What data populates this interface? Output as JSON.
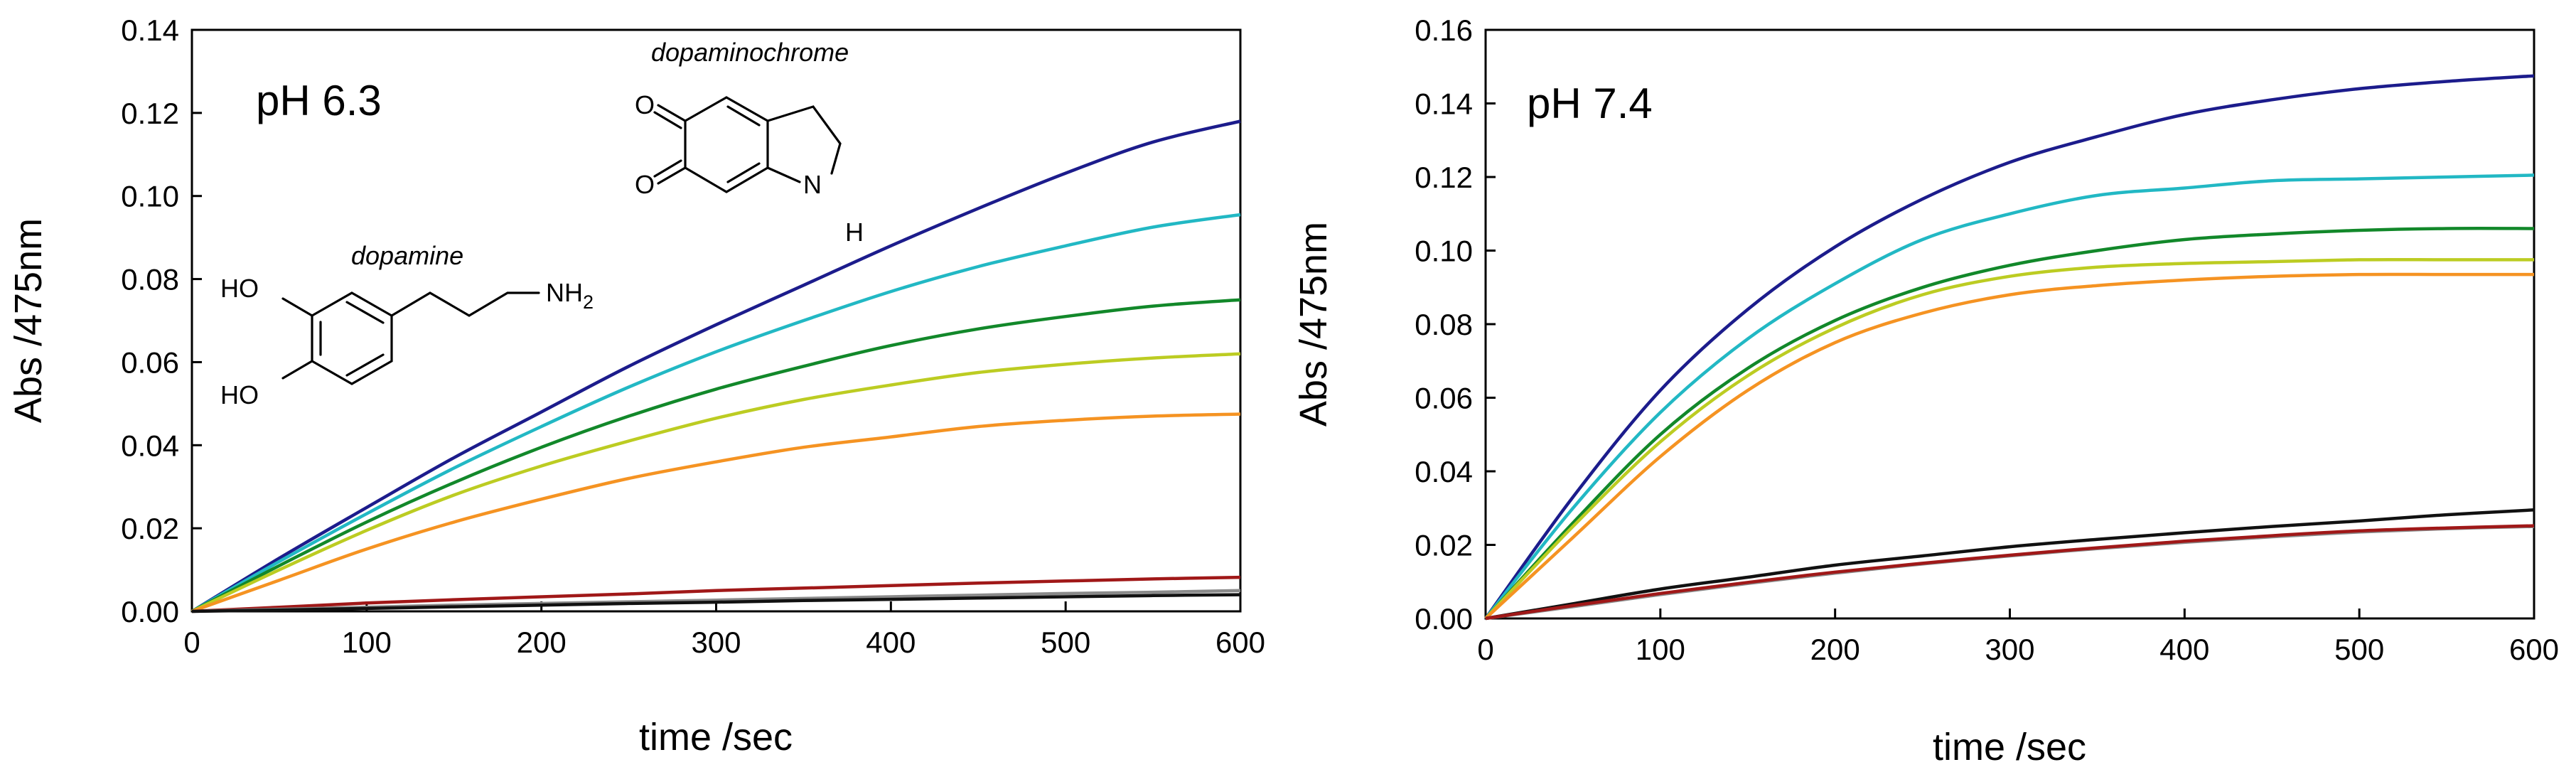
{
  "chart_data": [
    {
      "type": "line",
      "panel_label": "pH 6.3",
      "xlabel": "time /sec",
      "ylabel": "Abs /475nm",
      "xlim": [
        0,
        600
      ],
      "ylim": [
        0,
        0.14
      ],
      "xticks": [
        0,
        100,
        200,
        300,
        400,
        500,
        600
      ],
      "xtick_labels": [
        "0",
        "100",
        "200",
        "300",
        "400",
        "500",
        "600"
      ],
      "yticks": [
        0,
        0.02,
        0.04,
        0.06,
        0.08,
        0.1,
        0.12,
        0.14
      ],
      "ytick_labels": [
        "0.00",
        "0.02",
        "0.04",
        "0.06",
        "0.08",
        "0.10",
        "0.12",
        "0.14"
      ],
      "x": [
        0,
        50,
        100,
        150,
        200,
        250,
        300,
        350,
        400,
        450,
        500,
        550,
        600
      ],
      "series": [
        {
          "name": "navy",
          "color": "#1c1c8c",
          "values": [
            0,
            0.0128,
            0.025,
            0.037,
            0.048,
            0.059,
            0.069,
            0.0785,
            0.088,
            0.097,
            0.1055,
            0.113,
            0.118
          ]
        },
        {
          "name": "cyan",
          "color": "#22b8c4",
          "values": [
            0,
            0.012,
            0.0235,
            0.0345,
            0.0445,
            0.054,
            0.0625,
            0.07,
            0.077,
            0.083,
            0.088,
            0.0925,
            0.0955
          ]
        },
        {
          "name": "green",
          "color": "#12882a",
          "values": [
            0,
            0.011,
            0.0215,
            0.031,
            0.0395,
            0.047,
            0.0535,
            0.059,
            0.064,
            0.068,
            0.071,
            0.0735,
            0.075
          ]
        },
        {
          "name": "yellow-green",
          "color": "#bccc22",
          "values": [
            0,
            0.01,
            0.0195,
            0.028,
            0.035,
            0.041,
            0.0465,
            0.051,
            0.0545,
            0.0575,
            0.0595,
            0.061,
            0.062
          ]
        },
        {
          "name": "orange",
          "color": "#f59322",
          "values": [
            0,
            0.0075,
            0.015,
            0.0215,
            0.027,
            0.032,
            0.036,
            0.0395,
            0.042,
            0.0445,
            0.046,
            0.047,
            0.0475
          ]
        },
        {
          "name": "dark-red",
          "color": "#a01818",
          "values": [
            0,
            0.001,
            0.002,
            0.0028,
            0.0035,
            0.0042,
            0.005,
            0.0056,
            0.0062,
            0.0068,
            0.0073,
            0.0078,
            0.0082
          ]
        },
        {
          "name": "gray",
          "color": "#8a8a8a",
          "values": [
            0,
            0.0005,
            0.001,
            0.0015,
            0.0019,
            0.0023,
            0.0027,
            0.0031,
            0.0035,
            0.0039,
            0.0043,
            0.0046,
            0.005
          ]
        },
        {
          "name": "black",
          "color": "#111111",
          "values": [
            0,
            0.0003,
            0.0007,
            0.0011,
            0.0015,
            0.0019,
            0.0022,
            0.0026,
            0.0029,
            0.0032,
            0.0035,
            0.0038,
            0.004
          ]
        }
      ],
      "structures": {
        "dopamine": {
          "name": "dopamine",
          "atom_ho_top": "HO",
          "atom_ho_bottom": "HO",
          "atom_nh": "NH",
          "atom_nh_sub": "2"
        },
        "dopaminochrome": {
          "name": "dopaminochrome",
          "atom_o_top": "O",
          "atom_o_bottom": "O",
          "atom_n": "N",
          "atom_h": "H"
        }
      }
    },
    {
      "type": "line",
      "panel_label": "pH 7.4",
      "xlabel": "time /sec",
      "ylabel": "Abs /475nm",
      "xlim": [
        0,
        600
      ],
      "ylim": [
        0,
        0.16
      ],
      "xticks": [
        0,
        100,
        200,
        300,
        400,
        500,
        600
      ],
      "xtick_labels": [
        "0",
        "100",
        "200",
        "300",
        "400",
        "500",
        "600"
      ],
      "yticks": [
        0,
        0.02,
        0.04,
        0.06,
        0.08,
        0.1,
        0.12,
        0.14,
        0.16
      ],
      "ytick_labels": [
        "0.00",
        "0.02",
        "0.04",
        "0.06",
        "0.08",
        "0.10",
        "0.12",
        "0.14",
        "0.16"
      ],
      "x": [
        0,
        50,
        100,
        150,
        200,
        250,
        300,
        350,
        400,
        450,
        500,
        550,
        600
      ],
      "series": [
        {
          "name": "navy",
          "color": "#1c1c8c",
          "values": [
            0,
            0.033,
            0.062,
            0.084,
            0.101,
            0.114,
            0.124,
            0.131,
            0.137,
            0.141,
            0.144,
            0.146,
            0.1475
          ]
        },
        {
          "name": "cyan",
          "color": "#22b8c4",
          "values": [
            0,
            0.03,
            0.056,
            0.076,
            0.091,
            0.103,
            0.11,
            0.115,
            0.117,
            0.119,
            0.1195,
            0.12,
            0.1205
          ]
        },
        {
          "name": "green",
          "color": "#12882a",
          "values": [
            0,
            0.026,
            0.05,
            0.068,
            0.081,
            0.09,
            0.096,
            0.1,
            0.103,
            0.1045,
            0.1055,
            0.106,
            0.106
          ]
        },
        {
          "name": "yellow-green",
          "color": "#bccc22",
          "values": [
            0,
            0.025,
            0.048,
            0.066,
            0.079,
            0.088,
            0.093,
            0.0955,
            0.0965,
            0.097,
            0.0975,
            0.0975,
            0.0975
          ]
        },
        {
          "name": "orange",
          "color": "#f59322",
          "values": [
            0,
            0.022,
            0.044,
            0.062,
            0.075,
            0.083,
            0.088,
            0.0905,
            0.092,
            0.093,
            0.0935,
            0.0935,
            0.0935
          ]
        },
        {
          "name": "black",
          "color": "#111111",
          "values": [
            0,
            0.004,
            0.008,
            0.0112,
            0.0145,
            0.017,
            0.0195,
            0.0215,
            0.0233,
            0.025,
            0.0265,
            0.0282,
            0.0295
          ]
        },
        {
          "name": "gray",
          "color": "#8a8a8a",
          "values": [
            0,
            0.0032,
            0.0065,
            0.0095,
            0.0123,
            0.0148,
            0.017,
            0.019,
            0.0207,
            0.0222,
            0.0235,
            0.0244,
            0.025
          ]
        },
        {
          "name": "dark-red",
          "color": "#a01818",
          "values": [
            0,
            0.0035,
            0.0068,
            0.0098,
            0.0126,
            0.015,
            0.0172,
            0.0192,
            0.021,
            0.0225,
            0.0238,
            0.0246,
            0.0252
          ]
        }
      ]
    }
  ]
}
